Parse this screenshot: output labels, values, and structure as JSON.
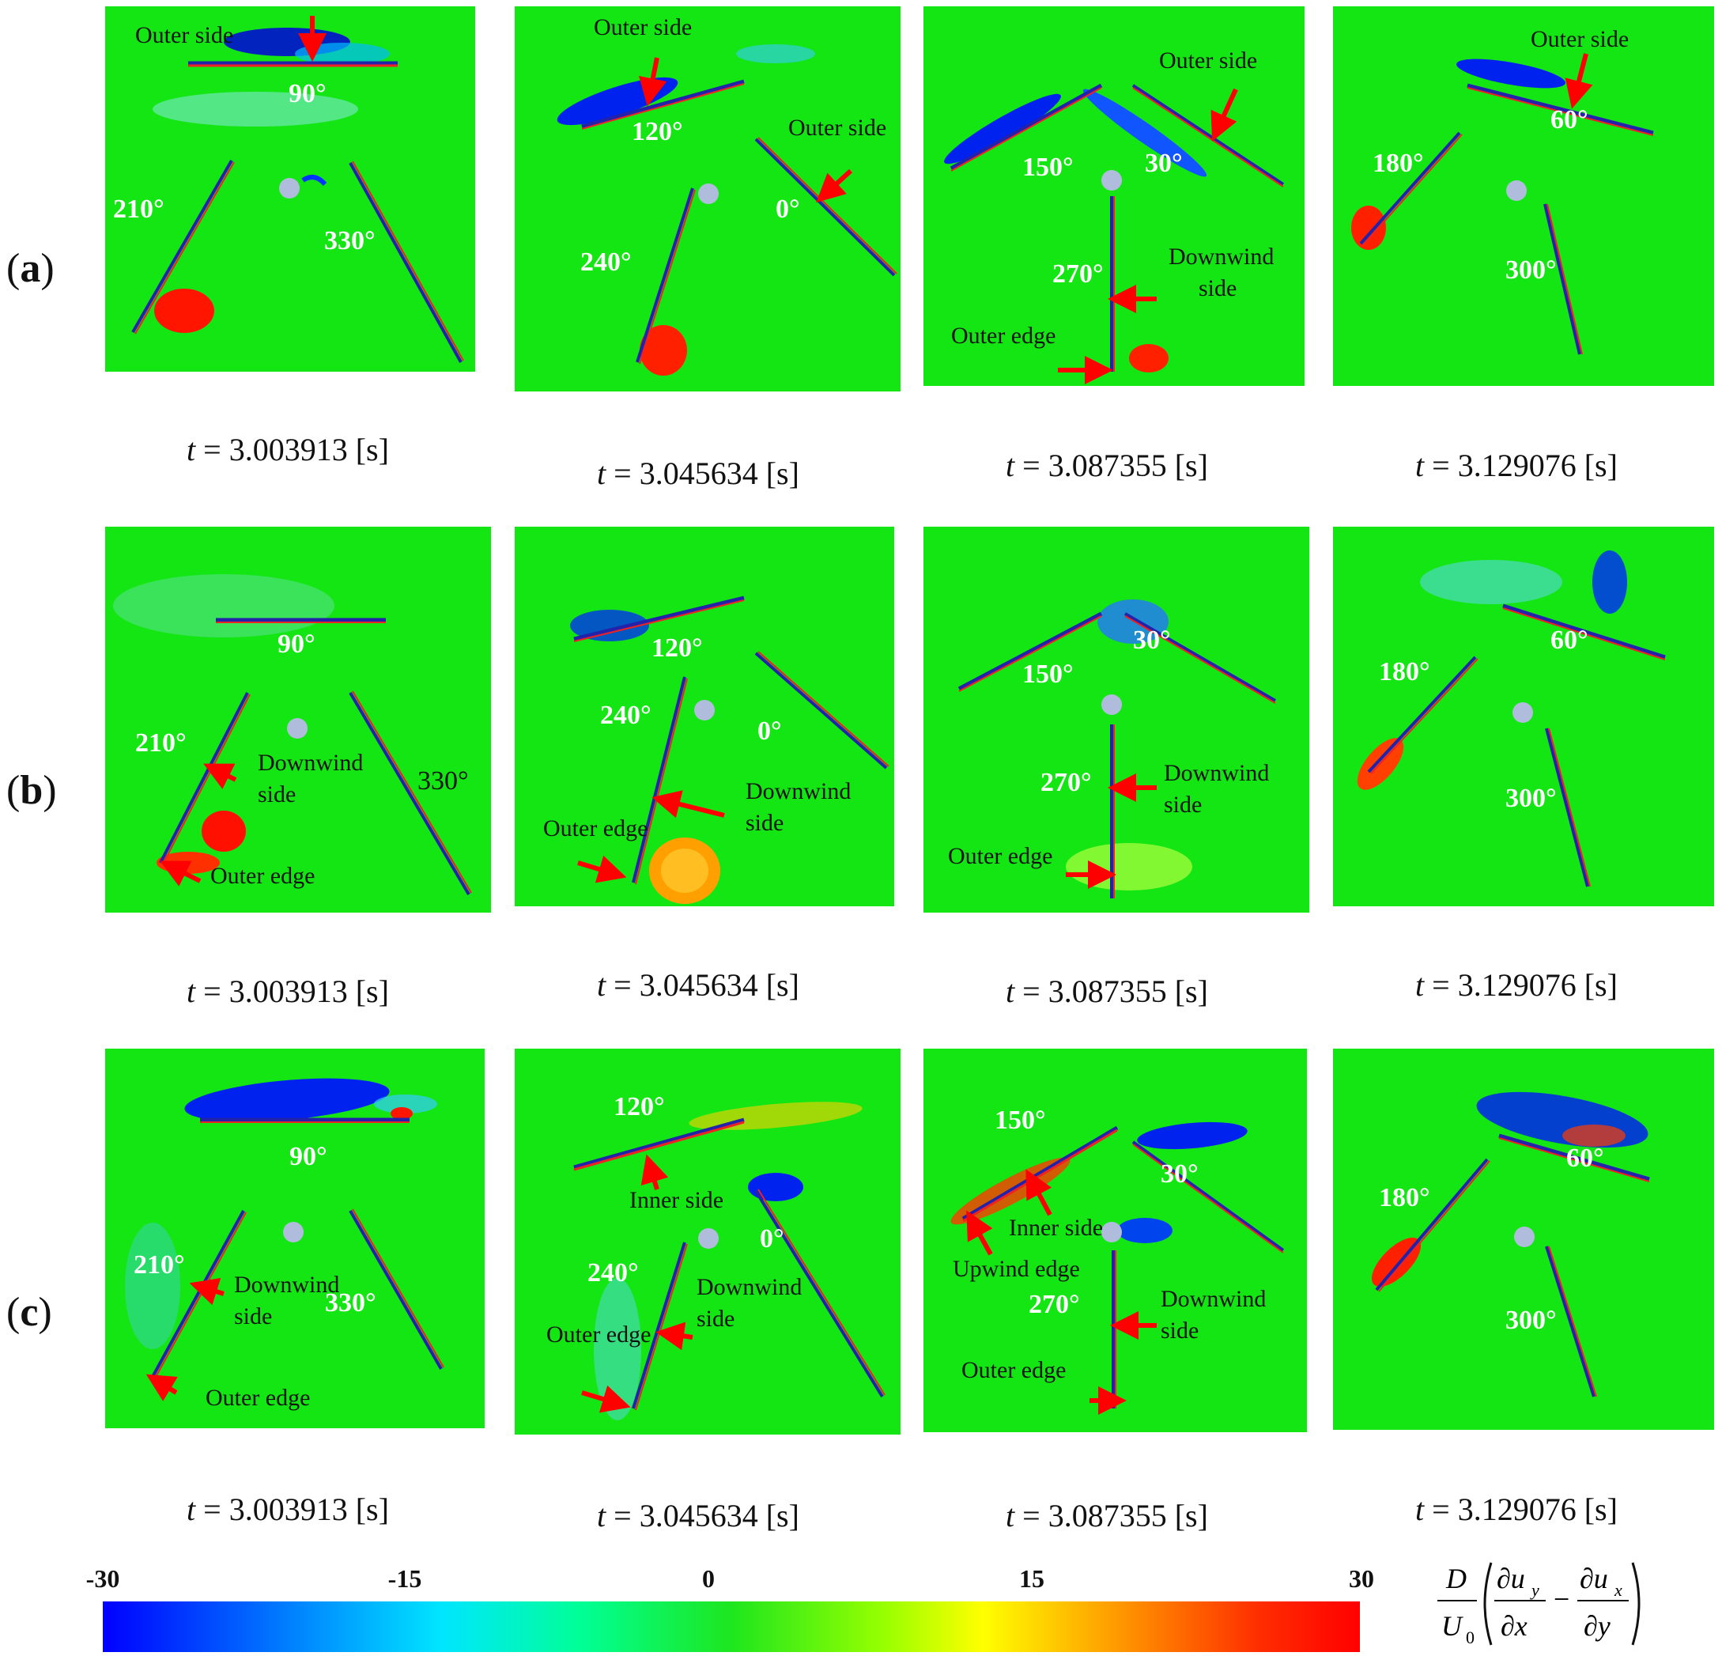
{
  "rows": [
    {
      "label": "a",
      "panels": [
        {
          "time": "3.003913",
          "angles": [
            "90°",
            "210°",
            "330°"
          ],
          "annotations": [
            "Outer side"
          ]
        },
        {
          "time": "3.045634",
          "angles": [
            "120°",
            "240°",
            "0°"
          ],
          "annotations": [
            "Outer side",
            "Outer side"
          ]
        },
        {
          "time": "3.087355",
          "angles": [
            "150°",
            "30°",
            "270°"
          ],
          "annotations": [
            "Outer side",
            "Downwind",
            "side",
            "Outer edge"
          ]
        },
        {
          "time": "3.129076",
          "angles": [
            "180°",
            "60°",
            "300°"
          ],
          "annotations": [
            "Outer side"
          ]
        }
      ]
    },
    {
      "label": "b",
      "panels": [
        {
          "time": "3.003913",
          "angles": [
            "90°",
            "210°",
            "330°"
          ],
          "annotations": [
            "Downwind",
            "side",
            "Outer edge"
          ]
        },
        {
          "time": "3.045634",
          "angles": [
            "120°",
            "240°",
            "0°"
          ],
          "annotations": [
            "Downwind",
            "side",
            "Outer edge"
          ]
        },
        {
          "time": "3.087355",
          "angles": [
            "30°",
            "150°",
            "270°"
          ],
          "annotations": [
            "Downwind",
            "side",
            "Outer edge"
          ]
        },
        {
          "time": "3.129076",
          "angles": [
            "180°",
            "60°",
            "300°"
          ],
          "annotations": []
        }
      ]
    },
    {
      "label": "c",
      "panels": [
        {
          "time": "3.003913",
          "angles": [
            "90°",
            "210°",
            "330°"
          ],
          "annotations": [
            "Downwind",
            "side",
            "Outer edge"
          ]
        },
        {
          "time": "3.045634",
          "angles": [
            "120°",
            "0°",
            "240°"
          ],
          "annotations": [
            "Inner side",
            "Downwind",
            "side",
            "Outer edge"
          ]
        },
        {
          "time": "3.087355",
          "angles": [
            "150°",
            "30°",
            "270°"
          ],
          "annotations": [
            "Inner side",
            "Upwind edge",
            "Downwind",
            "side",
            "Outer edge"
          ]
        },
        {
          "time": "3.129076",
          "angles": [
            "180°",
            "60°",
            "300°"
          ],
          "annotations": []
        }
      ]
    }
  ],
  "time_prefix": "t",
  "time_unit": "[s]",
  "colorbar": {
    "ticks": [
      "-30",
      "-15",
      "0",
      "15",
      "30"
    ],
    "colors": [
      "#0000ff",
      "#00e6ff",
      "#1ee61e",
      "#ffff00",
      "#ff0000"
    ]
  },
  "formula": {
    "numerator": "D",
    "denominator": "U",
    "denominator_sub": "0",
    "term1_num": "∂u",
    "term1_num_sub": "y",
    "term1_den": "∂x",
    "minus": "−",
    "term2_num": "∂u",
    "term2_num_sub": "x",
    "term2_den": "∂y"
  }
}
